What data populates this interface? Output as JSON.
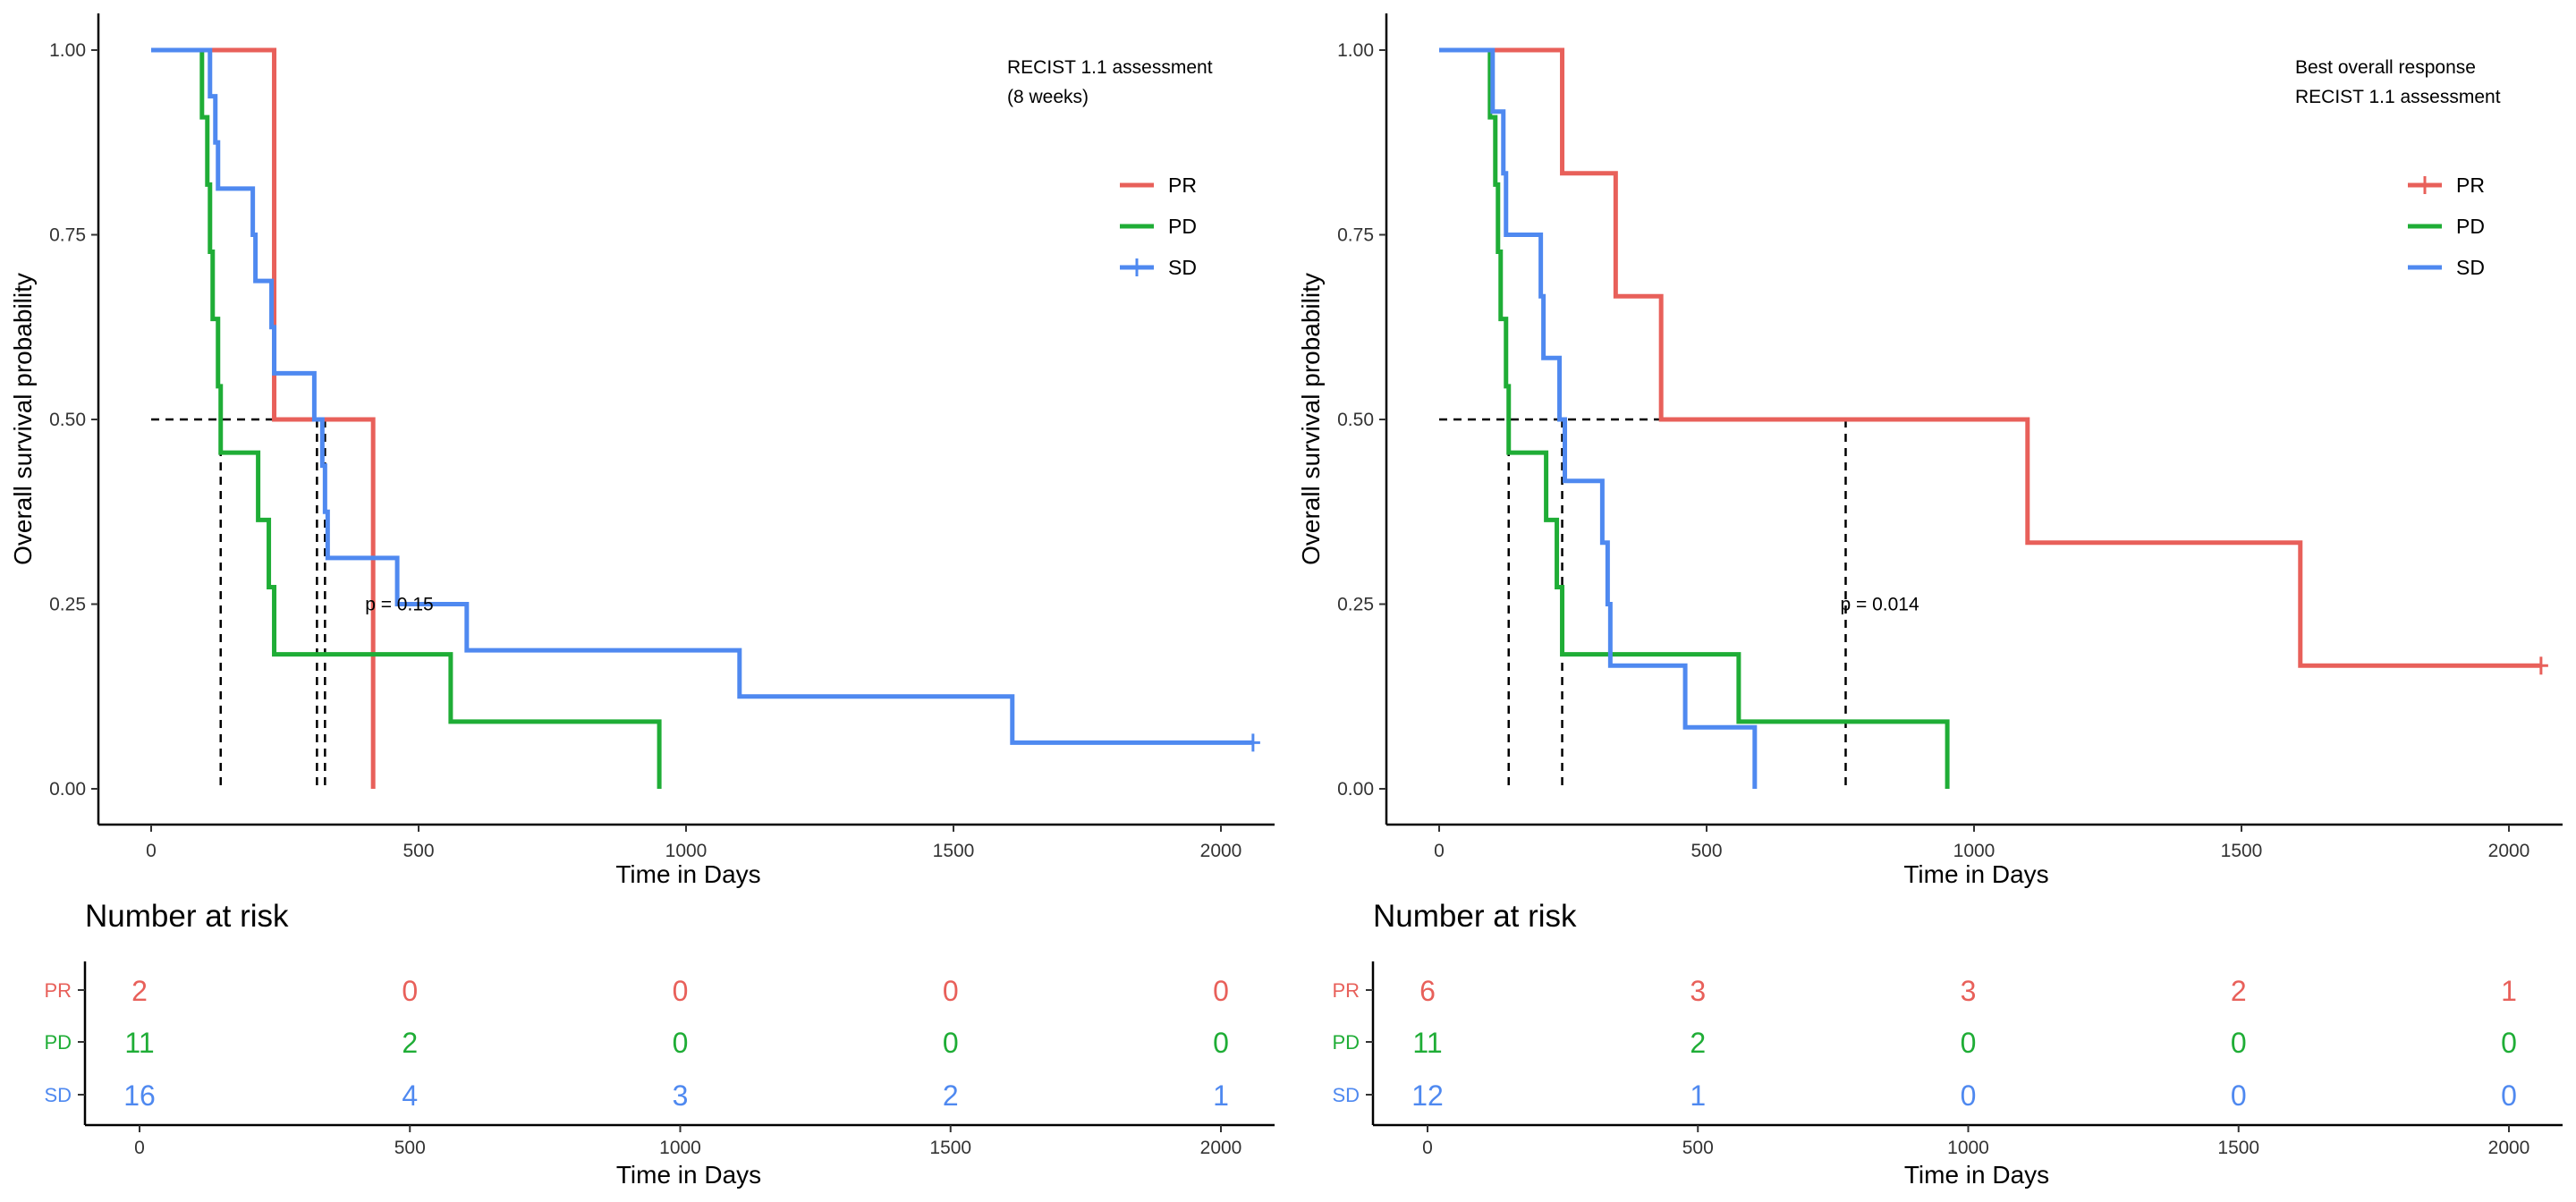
{
  "colors": {
    "PR": "#E8605A",
    "PD": "#1FAD36",
    "SD": "#4F89F0",
    "axis": "#000000"
  },
  "chart_data": [
    {
      "type": "line",
      "subtype": "kaplan-meier-step",
      "xlabel": "Time in Days",
      "ylabel": "Overall survival probability",
      "xlim": [
        -100,
        2100
      ],
      "ylim": [
        0,
        1.05
      ],
      "x_ticks": [
        0,
        500,
        1000,
        1500,
        2000
      ],
      "x_tick_labels": [
        "0",
        "500",
        "1000",
        "1500",
        "2000"
      ],
      "y_ticks": [
        0,
        0.25,
        0.5,
        0.75,
        1.0
      ],
      "y_tick_labels": [
        "0.00",
        "0.25",
        "0.50",
        "0.75",
        "1.00"
      ],
      "legend_title": [
        "RECIST 1.1 assessment",
        "(8 weeks)"
      ],
      "legend_position": "top-right",
      "p_value_text": "p = 0.15",
      "p_value_pos": [
        400,
        0.25
      ],
      "series": [
        {
          "name": "PR",
          "color": "PR",
          "censored": false,
          "steps": [
            [
              0,
              1.0
            ],
            [
              230,
              0.5
            ],
            [
              415,
              0.0
            ]
          ]
        },
        {
          "name": "PD",
          "color": "PD",
          "censored": false,
          "steps": [
            [
              0,
              1.0
            ],
            [
              95,
              0.909
            ],
            [
              105,
              0.818
            ],
            [
              110,
              0.727
            ],
            [
              115,
              0.636
            ],
            [
              125,
              0.545
            ],
            [
              130,
              0.455
            ],
            [
              200,
              0.364
            ],
            [
              220,
              0.273
            ],
            [
              230,
              0.182
            ],
            [
              560,
              0.091
            ],
            [
              950,
              0.0
            ]
          ]
        },
        {
          "name": "SD",
          "color": "SD",
          "censored": true,
          "steps": [
            [
              0,
              1.0
            ],
            [
              110,
              0.9375
            ],
            [
              120,
              0.875
            ],
            [
              125,
              0.8125
            ],
            [
              190,
              0.75
            ],
            [
              195,
              0.6875
            ],
            [
              225,
              0.625
            ],
            [
              230,
              0.5625
            ],
            [
              305,
              0.5
            ],
            [
              320,
              0.4375
            ],
            [
              325,
              0.375
            ],
            [
              330,
              0.3125
            ],
            [
              460,
              0.25
            ],
            [
              590,
              0.1875
            ],
            [
              1100,
              0.125
            ],
            [
              1610,
              0.0625
            ],
            [
              2060,
              0.0625
            ]
          ]
        }
      ],
      "median_lines": [
        130,
        310,
        325
      ],
      "risk_table": {
        "title": "Number at risk",
        "xlabel": "Time in Days",
        "times": [
          0,
          500,
          1000,
          1500,
          2000
        ],
        "rows": [
          {
            "group": "PR",
            "values": [
              "2",
              "0",
              "0",
              "0",
              "0"
            ]
          },
          {
            "group": "PD",
            "values": [
              "11",
              "2",
              "0",
              "0",
              "0"
            ]
          },
          {
            "group": "SD",
            "values": [
              "16",
              "4",
              "3",
              "2",
              "1"
            ]
          }
        ]
      }
    },
    {
      "type": "line",
      "subtype": "kaplan-meier-step",
      "xlabel": "Time in Days",
      "ylabel": "Overall survival probability",
      "xlim": [
        -100,
        2100
      ],
      "ylim": [
        0,
        1.05
      ],
      "x_ticks": [
        0,
        500,
        1000,
        1500,
        2000
      ],
      "x_tick_labels": [
        "0",
        "500",
        "1000",
        "1500",
        "2000"
      ],
      "y_ticks": [
        0,
        0.25,
        0.5,
        0.75,
        1.0
      ],
      "y_tick_labels": [
        "0.00",
        "0.25",
        "0.50",
        "0.75",
        "1.00"
      ],
      "legend_title": [
        "Best overall response",
        "RECIST 1.1 assessment"
      ],
      "legend_position": "top-right",
      "p_value_text": "p = 0.014",
      "p_value_pos": [
        750,
        0.25
      ],
      "series": [
        {
          "name": "PR",
          "color": "PR",
          "censored": true,
          "steps": [
            [
              0,
              1.0
            ],
            [
              230,
              0.8333
            ],
            [
              330,
              0.6667
            ],
            [
              415,
              0.5
            ],
            [
              1100,
              0.3333
            ],
            [
              1610,
              0.1667
            ],
            [
              2060,
              0.1667
            ]
          ]
        },
        {
          "name": "PD",
          "color": "PD",
          "censored": false,
          "steps": [
            [
              0,
              1.0
            ],
            [
              95,
              0.909
            ],
            [
              105,
              0.818
            ],
            [
              110,
              0.727
            ],
            [
              115,
              0.636
            ],
            [
              125,
              0.545
            ],
            [
              130,
              0.455
            ],
            [
              200,
              0.364
            ],
            [
              220,
              0.273
            ],
            [
              230,
              0.182
            ],
            [
              560,
              0.091
            ],
            [
              950,
              0.0
            ]
          ]
        },
        {
          "name": "SD",
          "color": "SD",
          "censored": false,
          "steps": [
            [
              0,
              1.0
            ],
            [
              100,
              0.9167
            ],
            [
              120,
              0.8333
            ],
            [
              125,
              0.75
            ],
            [
              190,
              0.6667
            ],
            [
              195,
              0.5833
            ],
            [
              225,
              0.5
            ],
            [
              235,
              0.4167
            ],
            [
              305,
              0.3333
            ],
            [
              315,
              0.25
            ],
            [
              320,
              0.1667
            ],
            [
              460,
              0.0833
            ],
            [
              590,
              0.0
            ]
          ]
        }
      ],
      "median_lines": [
        130,
        230,
        760
      ],
      "risk_table": {
        "title": "Number at risk",
        "xlabel": "Time in Days",
        "times": [
          0,
          500,
          1000,
          1500,
          2000
        ],
        "rows": [
          {
            "group": "PR",
            "values": [
              "6",
              "3",
              "3",
              "2",
              "1"
            ]
          },
          {
            "group": "PD",
            "values": [
              "11",
              "2",
              "0",
              "0",
              "0"
            ]
          },
          {
            "group": "SD",
            "values": [
              "12",
              "1",
              "0",
              "0",
              "0"
            ]
          }
        ]
      }
    }
  ]
}
